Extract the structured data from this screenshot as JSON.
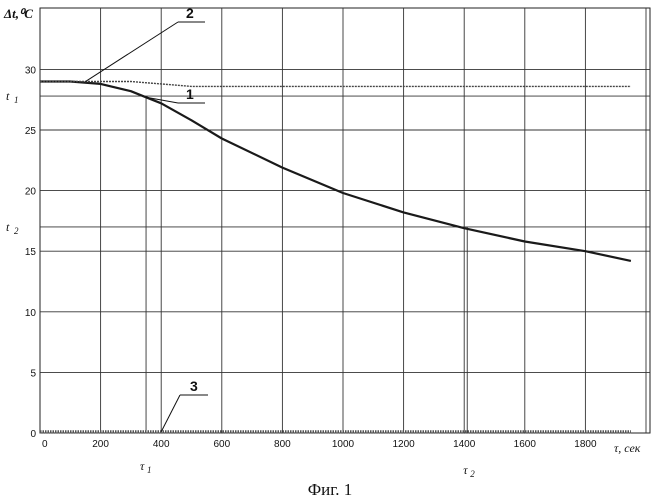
{
  "chart_data": {
    "type": "line",
    "ylabel": "Δt,⁰C",
    "xunit": "τ, сек",
    "xlim": [
      0,
      2000
    ],
    "ylim": [
      0,
      30
    ],
    "grid": true,
    "x_ticks": [
      0,
      200,
      400,
      600,
      800,
      1000,
      1200,
      1400,
      1600,
      1800
    ],
    "y_ticks": [
      0,
      5,
      10,
      15,
      20,
      25,
      30
    ],
    "series": [
      {
        "name": "1",
        "x": [
          0,
          100,
          200,
          300,
          350,
          400,
          500,
          600,
          800,
          1000,
          1200,
          1400,
          1600,
          1800,
          1950
        ],
        "values": [
          29,
          29,
          28.8,
          28.2,
          27.7,
          27.2,
          25.8,
          24.3,
          21.9,
          19.8,
          18.2,
          16.9,
          15.8,
          15,
          14.2
        ]
      },
      {
        "name": "2",
        "x": [
          0,
          300,
          500,
          1950
        ],
        "values": [
          29,
          29,
          28.6,
          28.6
        ]
      },
      {
        "name": "3",
        "x": [
          0,
          1950
        ],
        "values": [
          0.1,
          0.1
        ]
      }
    ],
    "markers": {
      "t1": {
        "label": "t",
        "sub": "1",
        "y": 27.8
      },
      "t2": {
        "label": "t",
        "sub": "2",
        "y": 17
      },
      "tau1": {
        "label": "τ",
        "sub": "1",
        "x": 350
      },
      "tau2": {
        "label": "τ",
        "sub": "2",
        "x": 1410
      }
    },
    "caption": "Фиг. 1"
  }
}
